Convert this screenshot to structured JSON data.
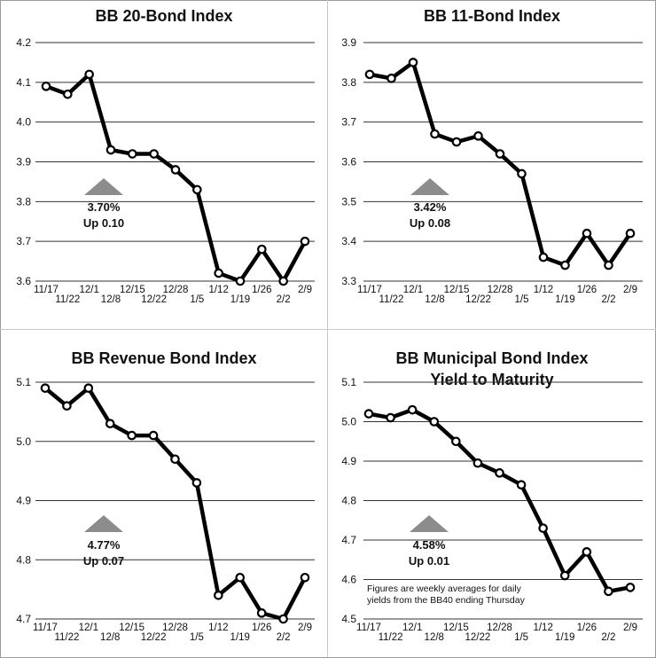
{
  "chart_data": [
    {
      "type": "line",
      "title": "BB 20-Bond Index",
      "subtitle": "",
      "categories": [
        "11/17",
        "11/22",
        "12/1",
        "12/8",
        "12/15",
        "12/22",
        "12/28",
        "1/5",
        "1/12",
        "1/19",
        "1/26",
        "2/2",
        "2/9"
      ],
      "values": [
        4.09,
        4.07,
        4.12,
        3.93,
        3.92,
        3.92,
        3.88,
        3.83,
        3.62,
        3.6,
        3.68,
        3.6,
        3.7
      ],
      "ylim": [
        3.6,
        4.2
      ],
      "yticks": [
        "4.2",
        "4.1",
        "4.0",
        "3.9",
        "3.8",
        "3.7",
        "3.6"
      ],
      "grid": true,
      "annotation": {
        "value": "3.70%",
        "change": "Up 0.10",
        "direction": "up"
      }
    },
    {
      "type": "line",
      "title": "BB 11-Bond Index",
      "subtitle": "",
      "categories": [
        "11/17",
        "11/22",
        "12/1",
        "12/8",
        "12/15",
        "12/22",
        "12/28",
        "1/5",
        "1/12",
        "1/19",
        "1/26",
        "2/2",
        "2/9"
      ],
      "values": [
        3.82,
        3.81,
        3.85,
        3.67,
        3.65,
        3.665,
        3.62,
        3.57,
        3.36,
        3.34,
        3.42,
        3.34,
        3.42
      ],
      "ylim": [
        3.3,
        3.9
      ],
      "yticks": [
        "3.9",
        "3.8",
        "3.7",
        "3.6",
        "3.5",
        "3.4",
        "3.3"
      ],
      "grid": true,
      "annotation": {
        "value": "3.42%",
        "change": "Up 0.08",
        "direction": "up"
      }
    },
    {
      "type": "line",
      "title": "BB Revenue Bond Index",
      "subtitle": "",
      "categories": [
        "11/17",
        "11/22",
        "12/1",
        "12/8",
        "12/15",
        "12/22",
        "12/28",
        "1/5",
        "1/12",
        "1/19",
        "1/26",
        "2/2",
        "2/9"
      ],
      "values": [
        5.09,
        5.06,
        5.09,
        5.03,
        5.01,
        5.01,
        4.97,
        4.93,
        4.74,
        4.77,
        4.71,
        4.7,
        4.77
      ],
      "ylim": [
        4.7,
        5.1
      ],
      "yticks": [
        "5.1",
        "5.0",
        "4.9",
        "4.8",
        "4.7"
      ],
      "grid": true,
      "annotation": {
        "value": "4.77%",
        "change": "Up 0.07",
        "direction": "up"
      }
    },
    {
      "type": "line",
      "title": "BB Municipal Bond Index",
      "subtitle": "Yield to Maturity",
      "categories": [
        "11/17",
        "11/22",
        "12/1",
        "12/8",
        "12/15",
        "12/22",
        "12/28",
        "1/5",
        "1/12",
        "1/19",
        "1/26",
        "2/2",
        "2/9"
      ],
      "values": [
        5.02,
        5.01,
        5.03,
        5.0,
        4.95,
        4.895,
        4.87,
        4.84,
        4.73,
        4.61,
        4.67,
        4.57,
        4.58
      ],
      "ylim": [
        4.5,
        5.1
      ],
      "yticks": [
        "5.1",
        "5.0",
        "4.9",
        "4.8",
        "4.7",
        "4.6",
        "4.5"
      ],
      "grid": true,
      "annotation": {
        "value": "4.58%",
        "change": "Up 0.01",
        "direction": "up"
      },
      "note": [
        "Figures are weekly averages for daily",
        "yields from the BB40 ending Thursday"
      ]
    }
  ]
}
